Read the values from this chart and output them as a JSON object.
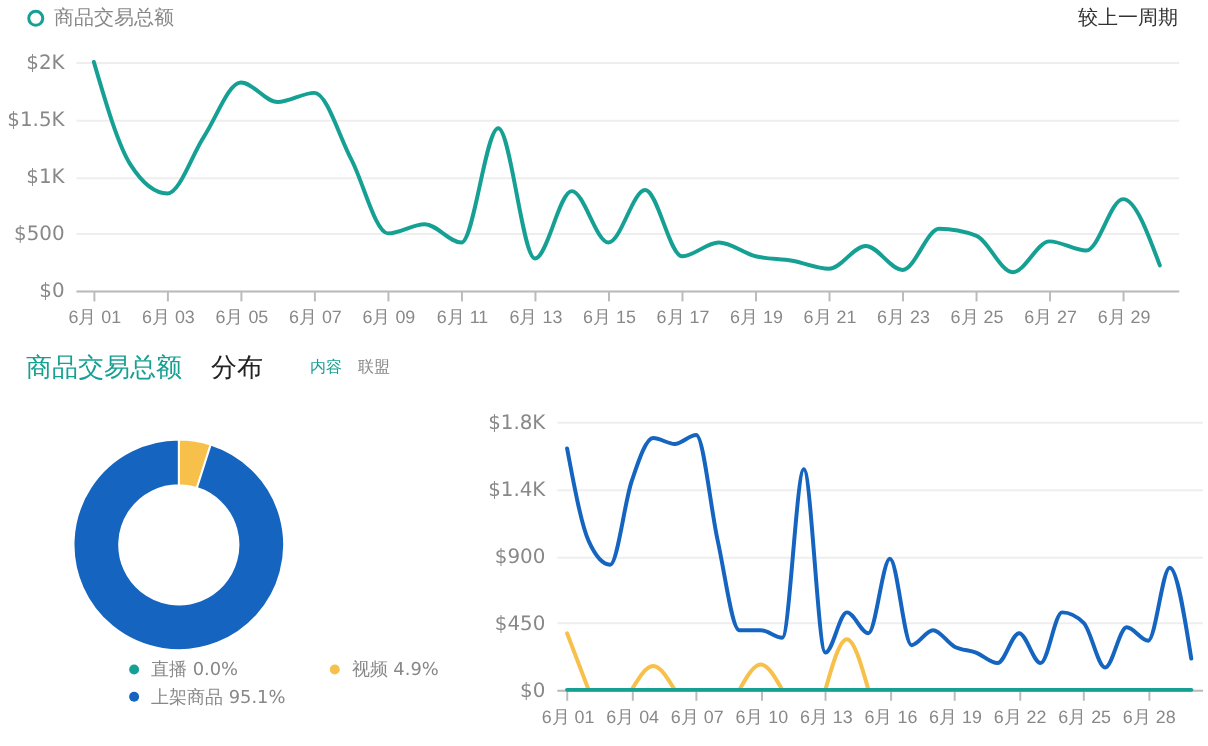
{
  "chart_data": [
    {
      "type": "line",
      "categories": [
        "6月 01",
        null,
        "6月 03",
        null,
        "6月 05",
        null,
        "6月 07",
        null,
        "6月 09",
        null,
        "6月 11",
        null,
        "6月 13",
        null,
        "6月 15",
        null,
        "6月 17",
        null,
        "6月 19",
        null,
        "6月 21",
        null,
        "6月 23",
        null,
        "6月 25",
        null,
        "6月 27",
        null,
        "6月 29",
        null
      ],
      "series": [
        {
          "name": "商品交易总额",
          "color": "#16a093",
          "values": [
            2000,
            1100,
            850,
            1350,
            1820,
            1650,
            1730,
            1150,
            500,
            580,
            420,
            1420,
            280,
            870,
            420,
            880,
            300,
            420,
            300,
            260,
            190,
            390,
            180,
            540,
            480,
            160,
            430,
            350,
            800,
            220
          ]
        }
      ],
      "ylim": [
        0,
        2000
      ],
      "yticks": [
        {
          "value": 0,
          "label": "$0"
        },
        {
          "value": 500,
          "label": "$500"
        },
        {
          "value": 1000,
          "label": "$1K"
        },
        {
          "value": 1500,
          "label": "$1.5K"
        },
        {
          "value": 2000,
          "label": "$2K"
        }
      ],
      "grid": "y",
      "legend": "top left",
      "annotations": [
        "较上一周期"
      ]
    },
    {
      "type": "donut",
      "title": "商品交易总额",
      "categories": [
        "直播",
        "视频",
        "上架商品"
      ],
      "values": [
        0.0,
        4.9,
        95.1
      ],
      "colors": [
        "#16a093",
        "#f7c04a",
        "#1565c0"
      ],
      "value_labels": [
        "0.0%",
        "4.9%",
        "95.1%"
      ],
      "legend": "bottom",
      "annotations": [
        "分布",
        "内容",
        "联盟"
      ]
    },
    {
      "type": "line",
      "categories": [
        "6月 01",
        null,
        null,
        "6月 04",
        null,
        null,
        "6月 07",
        null,
        null,
        "6月 10",
        null,
        null,
        "6月 13",
        null,
        null,
        "6月 16",
        null,
        null,
        "6月 19",
        null,
        null,
        "6月 22",
        null,
        null,
        "6月 25",
        null,
        null,
        "6月 28",
        null,
        null
      ],
      "series": [
        {
          "color": "#1565c0",
          "values": [
            1620,
            1000,
            840,
            1400,
            1690,
            1650,
            1710,
            1000,
            400,
            400,
            350,
            1480,
            250,
            520,
            380,
            880,
            300,
            400,
            290,
            250,
            180,
            380,
            180,
            520,
            450,
            150,
            420,
            330,
            820,
            210
          ]
        },
        {
          "color": "#f7c04a",
          "values": [
            380,
            0,
            null,
            0,
            160,
            0,
            null,
            null,
            0,
            170,
            0,
            null,
            0,
            340,
            0,
            null,
            null,
            null,
            null,
            null,
            null,
            null,
            null,
            null,
            null,
            null,
            null,
            null,
            null,
            null
          ]
        },
        {
          "color": "#16a093",
          "values": [
            0,
            0,
            0,
            0,
            0,
            0,
            0,
            0,
            0,
            0,
            0,
            0,
            0,
            0,
            0,
            0,
            0,
            0,
            0,
            0,
            0,
            0,
            0,
            0,
            0,
            0,
            0,
            0,
            0,
            0
          ]
        }
      ],
      "ylim": [
        0,
        1800
      ],
      "yticks": [
        {
          "value": 0,
          "label": "$0"
        },
        {
          "value": 450,
          "label": "$450"
        },
        {
          "value": 900,
          "label": "$900"
        },
        {
          "value": 1350,
          "label": "$1.4K"
        },
        {
          "value": 1800,
          "label": "$1.8K"
        }
      ],
      "grid": "y"
    }
  ]
}
